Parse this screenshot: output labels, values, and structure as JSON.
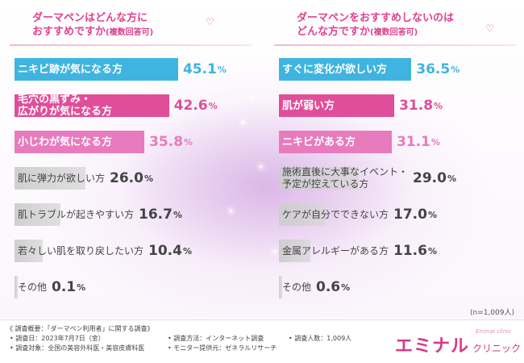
{
  "chart_data": [
    {
      "type": "bar",
      "title": "ダーマペンはどんな方に",
      "title_line2": "おすすめですか",
      "title_note": "(複数回答可)",
      "categories": [
        "ニキビ跡が気になる方",
        "毛穴の黒ずみ・\n広がりが気になる方",
        "小じわが気になる方",
        "肌に弾力が欲しい方",
        "肌トラブルが起きやすい方",
        "若々しい肌を取り戻したい方",
        "その他"
      ],
      "values": [
        45.1,
        42.6,
        35.8,
        26.0,
        16.7,
        10.4,
        0.1
      ],
      "value_labels": [
        {
          "num": "45.1",
          "unit": "%"
        },
        {
          "num": "42.6",
          "unit": "%"
        },
        {
          "num": "35.8",
          "unit": "%"
        },
        {
          "num": "26.0",
          "unit": "%"
        },
        {
          "num": "16.7",
          "unit": "%"
        },
        {
          "num": "10.4",
          "unit": "%"
        },
        {
          "num": "0.1",
          "unit": "%"
        }
      ],
      "bar_colors": [
        "#3fb4e0",
        "#e04e99",
        "#e77bbd",
        "#cfcfcf",
        "#cfcfcf",
        "#cfcfcf",
        "#cfcfcf"
      ],
      "value_colors": [
        "#3fb4e0",
        "#e04e99",
        "#e77bbd",
        "#444444",
        "#444444",
        "#444444",
        "#444444"
      ],
      "highlighted": [
        true,
        true,
        true,
        false,
        false,
        false,
        false
      ]
    },
    {
      "type": "bar",
      "title": "ダーマペンをおすすめしないのは",
      "title_line2": "どんな方ですか",
      "title_note": "(複数回答可)",
      "categories": [
        "すぐに変化が欲しい方",
        "肌が弱い方",
        "ニキビがある方",
        "施術直後に大事なイベント・\n予定が控えている方",
        "ケアが自分でできない方",
        "金属アレルギーがある方",
        "その他"
      ],
      "values": [
        36.5,
        31.8,
        31.1,
        29.0,
        17.0,
        11.6,
        0.6
      ],
      "value_labels": [
        {
          "num": "36.5",
          "unit": "%"
        },
        {
          "num": "31.8",
          "unit": "%"
        },
        {
          "num": "31.1",
          "unit": "%"
        },
        {
          "num": "29.0",
          "unit": "%"
        },
        {
          "num": "17.0",
          "unit": "%"
        },
        {
          "num": "11.6",
          "unit": "%"
        },
        {
          "num": "0.6",
          "unit": "%"
        }
      ],
      "bar_colors": [
        "#3fb4e0",
        "#e04e99",
        "#e77bbd",
        "#cfcfcf",
        "#cfcfcf",
        "#cfcfcf",
        "#cfcfcf"
      ],
      "value_colors": [
        "#3fb4e0",
        "#e04e99",
        "#e77bbd",
        "#444444",
        "#444444",
        "#444444",
        "#444444"
      ],
      "highlighted": [
        true,
        true,
        true,
        false,
        false,
        false,
        false
      ]
    }
  ],
  "sample_note": "(n=1,009人)",
  "survey": {
    "header": "《 調査概要：「ダーマペン利用者」に関する調査》",
    "date": "• 調査日：2023年7月7日（金）",
    "target": "• 調査対象：全国の美容外科医・美容皮膚科医",
    "method": "• 調査方法：インターネット調査",
    "provider": "• モニター提供元：ゼネラルリサーチ",
    "count": "• 調査人数：1,009人"
  },
  "brand": {
    "name": "エミナル",
    "sub": "クリニック",
    "tag": "Eminal clinic"
  },
  "colors": {
    "accent_pink": "#e0418f",
    "blue": "#3fb4e0",
    "gray_bar": "#cfcfcf"
  }
}
